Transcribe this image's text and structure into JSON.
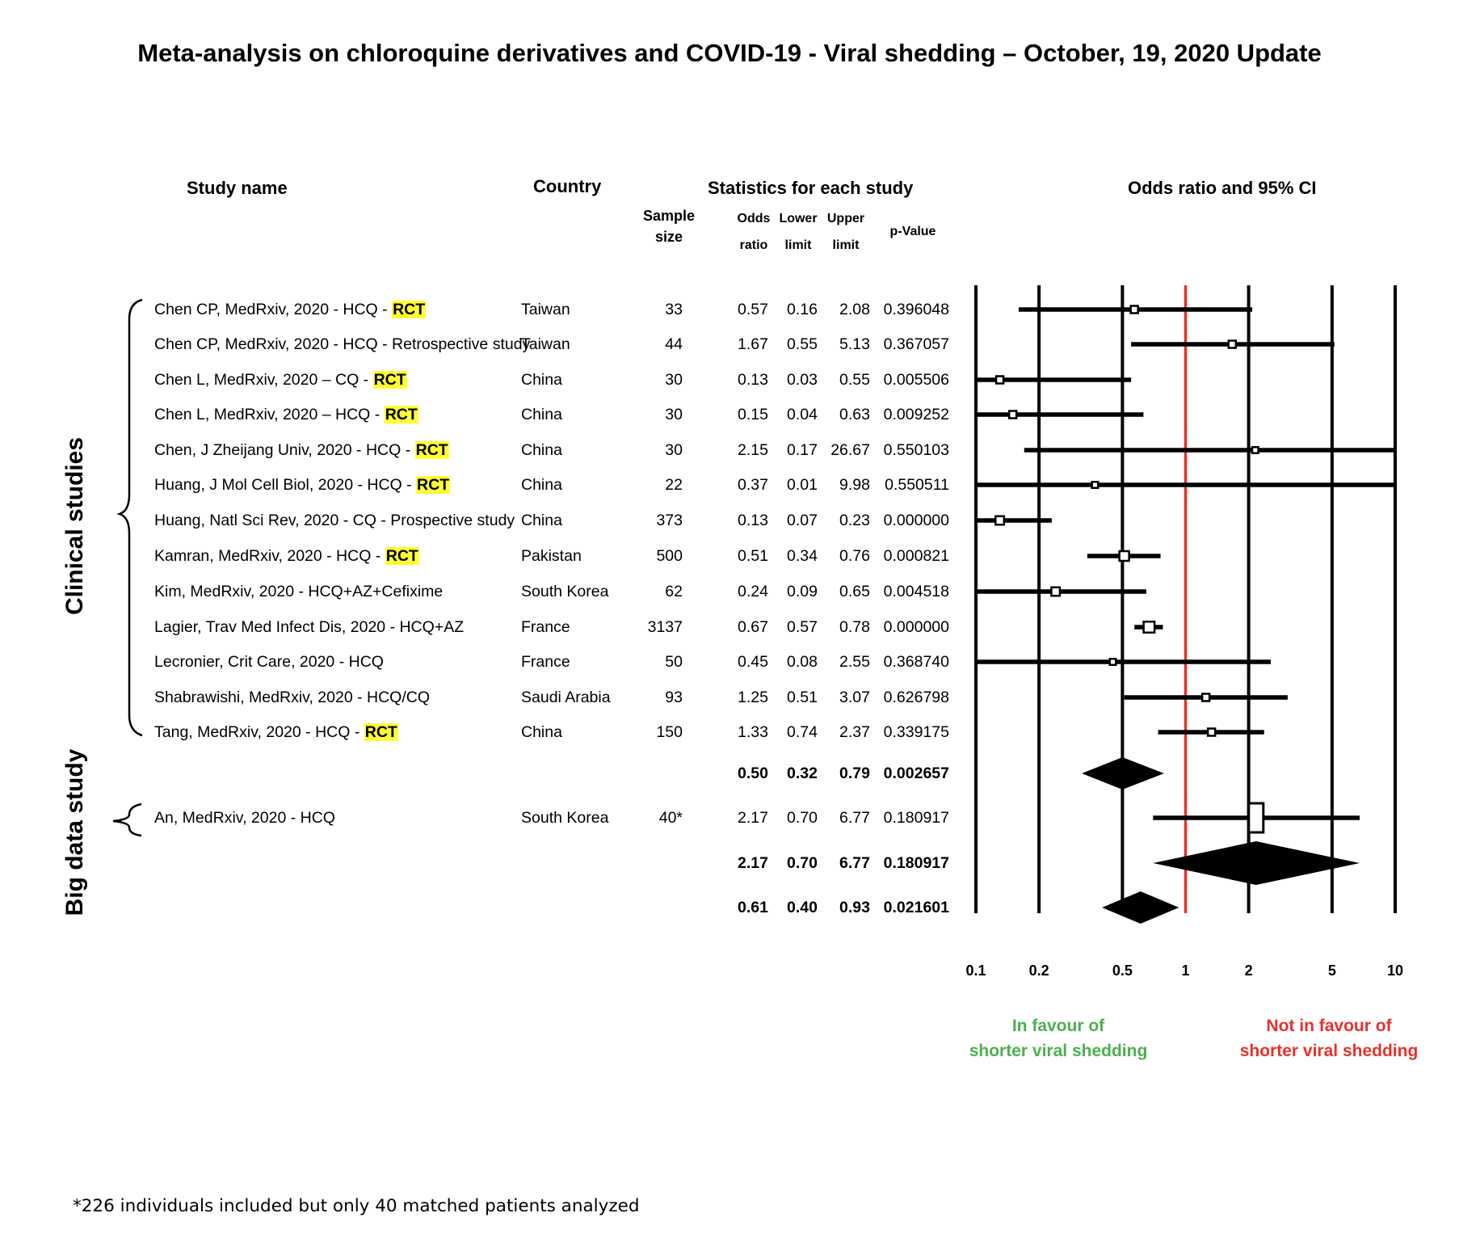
{
  "chart_data": {
    "type": "forest",
    "title": "Meta-analysis on chloroquine derivatives and COVID-19 - Viral shedding – October, 19, 2020 Update",
    "headers": {
      "study_name": "Study name",
      "country": "Country",
      "stats": "Statistics for each study",
      "plot": "Odds ratio and 95% CI",
      "sample_size_1": "Sample",
      "sample_size_2": "size",
      "odds_1": "Odds",
      "odds_2": "ratio",
      "lower_1": "Lower",
      "lower_2": "limit",
      "upper_1": "Upper",
      "upper_2": "limit",
      "pvalue": "p-Value"
    },
    "groups": [
      {
        "label": "Clinical studies",
        "studies": [
          {
            "name": "Chen CP, MedRxiv, 2020 - HCQ - ",
            "tag": "RCT",
            "country": "Taiwan",
            "n": "33",
            "or": 0.57,
            "lower": 0.16,
            "upper": 2.08,
            "p": "0.396048",
            "weight": 0.1
          },
          {
            "name": "Chen CP, MedRxiv, 2020 - HCQ - Retrospective study",
            "tag": "",
            "country": "Taiwan",
            "n": "44",
            "or": 1.67,
            "lower": 0.55,
            "upper": 5.13,
            "p": "0.367057",
            "weight": 0.1
          },
          {
            "name": "Chen L, MedRxiv, 2020 – CQ - ",
            "tag": "RCT",
            "country": "China",
            "n": "30",
            "or": 0.13,
            "lower": 0.03,
            "upper": 0.55,
            "p": "0.005506",
            "weight": 0.1
          },
          {
            "name": "Chen L, MedRxiv, 2020 – HCQ - ",
            "tag": "RCT",
            "country": "China",
            "n": "30",
            "or": 0.15,
            "lower": 0.04,
            "upper": 0.63,
            "p": "0.009252",
            "weight": 0.1
          },
          {
            "name": "Chen, J Zheijang Univ, 2020 - HCQ - ",
            "tag": "RCT",
            "country": "China",
            "n": "30",
            "or": 2.15,
            "lower": 0.17,
            "upper": 26.67,
            "p": "0.550103",
            "weight": 0.05
          },
          {
            "name": "Huang, J Mol Cell Biol, 2020 - HCQ - ",
            "tag": "RCT",
            "country": "China",
            "n": "22",
            "or": 0.37,
            "lower": 0.01,
            "upper": 9.98,
            "p": "0.550511",
            "weight": 0.05
          },
          {
            "name": "Huang, Natl Sci Rev, 2020 - CQ - Prospective study",
            "tag": "",
            "country": "China",
            "n": "373",
            "or": 0.13,
            "lower": 0.07,
            "upper": 0.23,
            "p": "0.000000",
            "weight": 0.15
          },
          {
            "name": "Kamran, MedRxiv, 2020 - HCQ - ",
            "tag": "RCT",
            "country": "Pakistan",
            "n": "500",
            "or": 0.51,
            "lower": 0.34,
            "upper": 0.76,
            "p": "0.000821",
            "weight": 0.2
          },
          {
            "name": "Kim, MedRxiv, 2020 - HCQ+AZ+Cefixime",
            "tag": "",
            "country": "South Korea",
            "n": "62",
            "or": 0.24,
            "lower": 0.09,
            "upper": 0.65,
            "p": "0.004518",
            "weight": 0.15
          },
          {
            "name": "Lagier, Trav Med Infect Dis, 2020 - HCQ+AZ",
            "tag": "",
            "country": "France",
            "n": "3137",
            "or": 0.67,
            "lower": 0.57,
            "upper": 0.78,
            "p": "0.000000",
            "weight": 0.25
          },
          {
            "name": "Lecronier, Crit Care, 2020 - HCQ",
            "tag": "",
            "country": "France",
            "n": "50",
            "or": 0.45,
            "lower": 0.08,
            "upper": 2.55,
            "p": "0.368740",
            "weight": 0.05
          },
          {
            "name": "Shabrawishi, MedRxiv, 2020 - HCQ/CQ",
            "tag": "",
            "country": "Saudi Arabia",
            "n": "93",
            "or": 1.25,
            "lower": 0.51,
            "upper": 3.07,
            "p": "0.626798",
            "weight": 0.1
          },
          {
            "name": "Tang, MedRxiv, 2020 - HCQ - ",
            "tag": "RCT",
            "country": "China",
            "n": "150",
            "or": 1.33,
            "lower": 0.74,
            "upper": 2.37,
            "p": "0.339175",
            "weight": 0.1
          }
        ],
        "summary": {
          "or": 0.5,
          "lower": 0.32,
          "upper": 0.79,
          "p": "0.002657"
        }
      },
      {
        "label": "Big data study",
        "studies": [
          {
            "name": "An, MedRxiv, 2020 - HCQ",
            "tag": "",
            "country": "South Korea",
            "n": "40*",
            "or": 2.17,
            "lower": 0.7,
            "upper": 6.77,
            "p": "0.180917",
            "weight": 1.0
          }
        ],
        "summary": {
          "or": 2.17,
          "lower": 0.7,
          "upper": 6.77,
          "p": "0.180917"
        }
      }
    ],
    "overall": {
      "or": 0.61,
      "lower": 0.4,
      "upper": 0.93,
      "p": "0.021601"
    },
    "x_axis": {
      "scale": "log",
      "ticks": [
        0.1,
        0.2,
        0.5,
        1,
        2,
        5,
        10
      ],
      "tick_labels": [
        "0.1",
        "0.2",
        "0.5",
        "1",
        "2",
        "5",
        "10"
      ],
      "reference_line": 1
    },
    "legend": {
      "left_1": "In favour of",
      "left_2": "shorter viral shedding",
      "right_1": "Not in favour of",
      "right_2": "shorter viral shedding"
    },
    "colors": {
      "reference": "#e8312a",
      "favour": "#4caf50",
      "not_favour": "#e8312a",
      "rct_highlight": "#ffff33"
    },
    "footnote": "*226 individuals included but only 40 matched patients analyzed"
  }
}
